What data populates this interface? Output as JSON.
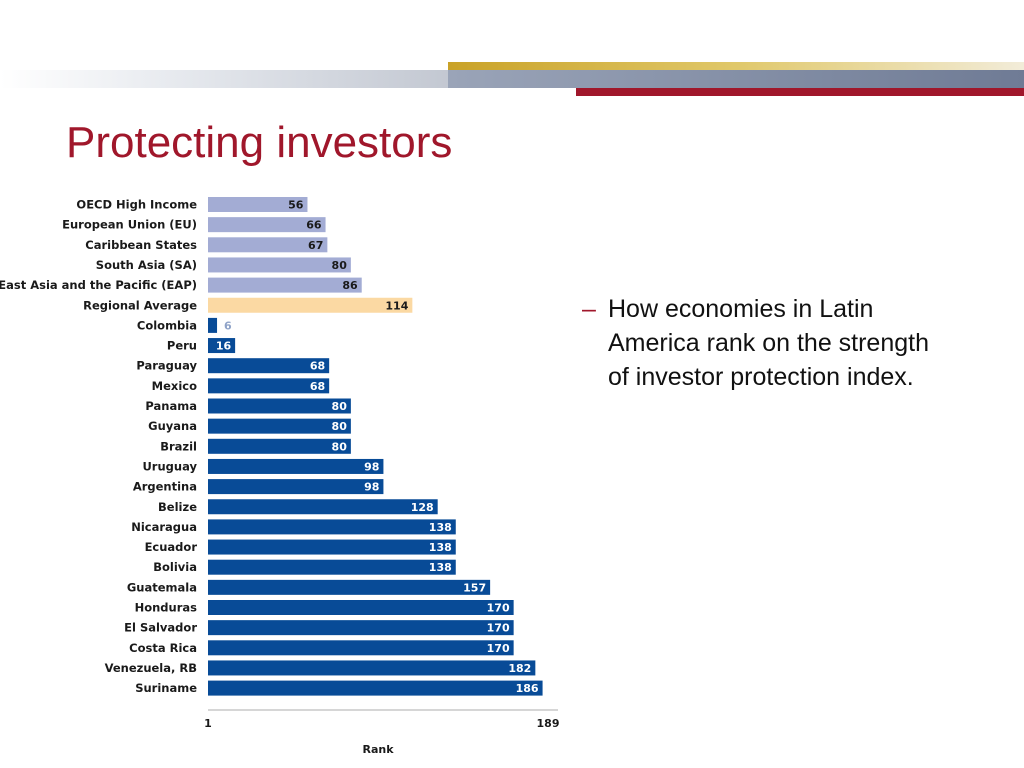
{
  "slide": {
    "title": "Protecting investors",
    "bullet_dash": "–",
    "bullet_text": "How economies in Latin America rank on the strength of investor protection index."
  },
  "colors": {
    "accent_red": "#a0172b",
    "benchmark_bar": "#a3acd4",
    "regional_bar": "#fbd9a3",
    "country_bar": "#084b97"
  },
  "chart_data": {
    "type": "bar",
    "orientation": "horizontal",
    "title": "",
    "xlabel": "Rank",
    "ylabel": "",
    "xlim": [
      1,
      189
    ],
    "xticks": [
      "1",
      "189"
    ],
    "grid": false,
    "legend": "none",
    "categories": [
      "OECD High Income",
      "European Union (EU)",
      "Caribbean States",
      "South Asia (SA)",
      "East Asia and the Pacific (EAP)",
      "Regional Average",
      "Colombia",
      "Peru",
      "Paraguay",
      "Mexico",
      "Panama",
      "Guyana",
      "Brazil",
      "Uruguay",
      "Argentina",
      "Belize",
      "Nicaragua",
      "Ecuador",
      "Bolivia",
      "Guatemala",
      "Honduras",
      "El Salvador",
      "Costa Rica",
      "Venezuela, RB",
      "Suriname"
    ],
    "values": [
      56,
      66,
      67,
      80,
      86,
      114,
      6,
      16,
      68,
      68,
      80,
      80,
      80,
      98,
      98,
      128,
      138,
      138,
      138,
      157,
      170,
      170,
      170,
      182,
      186
    ],
    "groups": [
      "benchmark",
      "benchmark",
      "benchmark",
      "benchmark",
      "benchmark",
      "regional",
      "country",
      "country",
      "country",
      "country",
      "country",
      "country",
      "country",
      "country",
      "country",
      "country",
      "country",
      "country",
      "country",
      "country",
      "country",
      "country",
      "country",
      "country",
      "country"
    ]
  }
}
